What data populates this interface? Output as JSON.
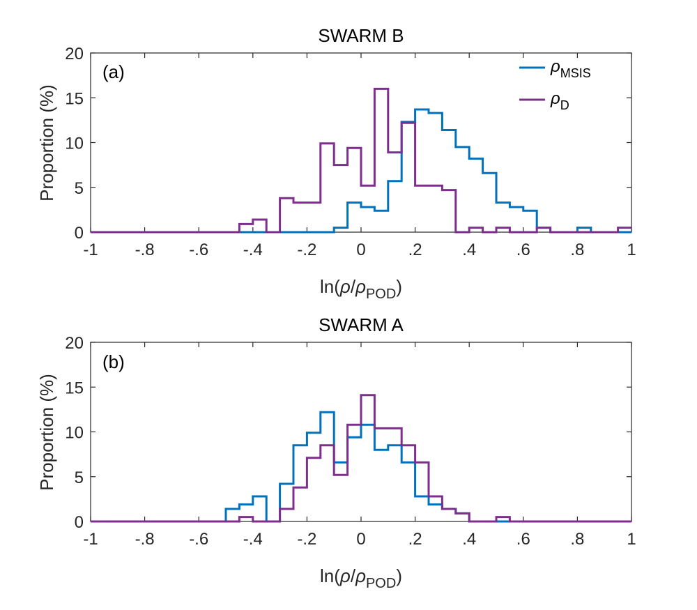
{
  "chart_data": [
    {
      "type": "histogram",
      "panel_label": "(a)",
      "title": "SWARM B",
      "xlabel": "ln(ρ/ρ_POD)",
      "ylabel": "Proportion (%)",
      "xlim": [
        -1,
        1
      ],
      "ylim": [
        0,
        20
      ],
      "xticks": [
        -1,
        -0.8,
        -0.6,
        -0.4,
        -0.2,
        0,
        0.2,
        0.4,
        0.6,
        0.8,
        1
      ],
      "yticks": [
        0,
        5,
        10,
        15,
        20
      ],
      "legend": {
        "position": "top-right"
      },
      "series": [
        {
          "name": "ρ_MSIS",
          "color": "#0072BD",
          "edges": [
            -1,
            -0.1,
            -0.05,
            0,
            0.05,
            0.1,
            0.15,
            0.2,
            0.25,
            0.3,
            0.35,
            0.4,
            0.45,
            0.5,
            0.55,
            0.6,
            0.65,
            0.7,
            0.8,
            0.85,
            1
          ],
          "values": [
            0,
            0.5,
            3.3,
            2.8,
            2.4,
            5.7,
            12.3,
            13.7,
            13.3,
            11.4,
            9.5,
            8.2,
            6.6,
            3.3,
            2.8,
            2.4,
            0.5,
            0,
            0.5,
            0
          ]
        },
        {
          "name": "ρ_D",
          "color": "#7E2F8E",
          "edges": [
            -1,
            -0.45,
            -0.4,
            -0.35,
            -0.3,
            -0.25,
            -0.15,
            -0.1,
            -0.05,
            0,
            0.05,
            0.1,
            0.15,
            0.2,
            0.3,
            0.35,
            0.4,
            0.45,
            0.5,
            0.55,
            0.6,
            0.65,
            0.7,
            0.95,
            1
          ],
          "values": [
            0,
            0.9,
            1.4,
            0,
            3.8,
            3.3,
            9.9,
            7.5,
            9.4,
            5.2,
            16.0,
            8.9,
            12.2,
            5.2,
            4.7,
            0,
            0.5,
            0,
            0.5,
            0,
            0,
            0.5,
            0,
            0.5
          ]
        }
      ]
    },
    {
      "type": "histogram",
      "panel_label": "(b)",
      "title": "SWARM A",
      "xlabel": "ln(ρ/ρ_POD)",
      "ylabel": "Proportion (%)",
      "xlim": [
        -1,
        1
      ],
      "ylim": [
        0,
        20
      ],
      "xticks": [
        -1,
        -0.8,
        -0.6,
        -0.4,
        -0.2,
        0,
        0.2,
        0.4,
        0.6,
        0.8,
        1
      ],
      "yticks": [
        0,
        5,
        10,
        15,
        20
      ],
      "series": [
        {
          "name": "ρ_MSIS",
          "color": "#0072BD",
          "edges": [
            -1,
            -0.5,
            -0.45,
            -0.4,
            -0.35,
            -0.3,
            -0.25,
            -0.2,
            -0.15,
            -0.1,
            -0.05,
            0,
            0.05,
            0.1,
            0.15,
            0.2,
            0.25,
            0.3,
            0.35,
            0.4,
            0.45,
            0.5,
            1
          ],
          "values": [
            0,
            1.4,
            1.9,
            2.8,
            0,
            4.2,
            8.5,
            9.9,
            12.2,
            6.6,
            9.4,
            10.8,
            8.0,
            8.5,
            6.6,
            2.8,
            1.9,
            1.4,
            0.9,
            0,
            0,
            0
          ]
        },
        {
          "name": "ρ_D",
          "color": "#7E2F8E",
          "edges": [
            -1,
            -0.45,
            -0.4,
            -0.35,
            -0.3,
            -0.25,
            -0.2,
            -0.15,
            -0.1,
            -0.05,
            0,
            0.05,
            0.1,
            0.15,
            0.2,
            0.25,
            0.3,
            0.35,
            0.4,
            0.45,
            0.5,
            0.55,
            0.6,
            1
          ],
          "values": [
            0,
            0.5,
            0,
            0,
            1.4,
            3.8,
            7.1,
            8.5,
            5.2,
            10.8,
            14.1,
            10.4,
            10.4,
            8.5,
            6.6,
            2.8,
            1.4,
            0.9,
            0,
            0,
            0.5,
            0,
            0
          ]
        }
      ]
    }
  ]
}
